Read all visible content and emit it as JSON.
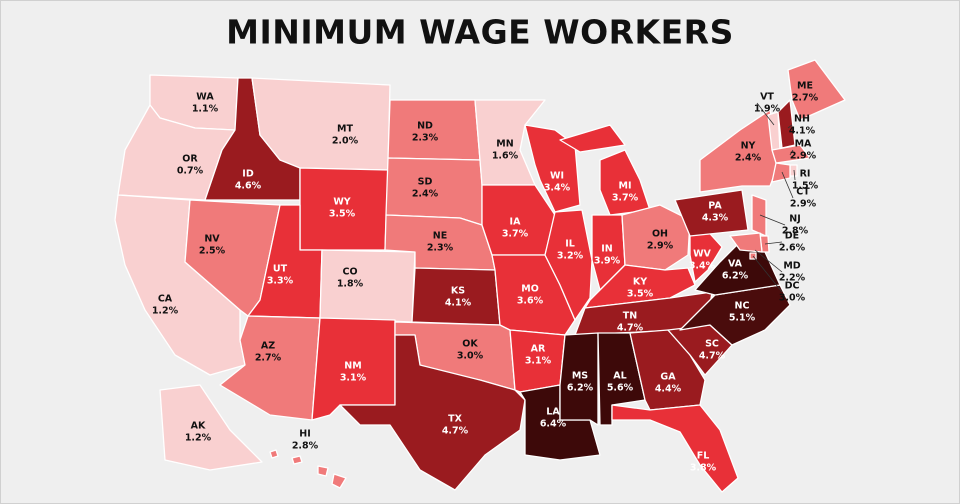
{
  "chart_data": {
    "type": "choropleth",
    "title": "MINIMUM WAGE WORKERS",
    "categories": [
      "WA",
      "OR",
      "CA",
      "NV",
      "ID",
      "MT",
      "WY",
      "UT",
      "CO",
      "AZ",
      "NM",
      "ND",
      "SD",
      "NE",
      "KS",
      "OK",
      "TX",
      "MN",
      "IA",
      "MO",
      "AR",
      "LA",
      "WI",
      "IL",
      "MI",
      "IN",
      "OH",
      "KY",
      "TN",
      "MS",
      "AL",
      "GA",
      "FL",
      "SC",
      "NC",
      "VA",
      "WV",
      "PA",
      "NY",
      "NJ",
      "VT",
      "NH",
      "ME",
      "MA",
      "RI",
      "CT",
      "DE",
      "MD",
      "DC",
      "AK",
      "HI"
    ],
    "values": [
      1.1,
      0.7,
      1.2,
      2.5,
      4.6,
      2.0,
      3.5,
      3.3,
      1.8,
      2.7,
      3.1,
      2.3,
      2.4,
      2.3,
      4.1,
      3.0,
      4.7,
      1.6,
      3.7,
      3.6,
      3.1,
      6.4,
      3.4,
      3.2,
      3.7,
      3.9,
      2.9,
      3.5,
      4.7,
      6.2,
      5.6,
      4.4,
      3.8,
      4.7,
      5.1,
      6.2,
      3.4,
      4.3,
      2.4,
      2.8,
      1.9,
      4.1,
      2.7,
      2.9,
      1.5,
      2.9,
      2.6,
      2.2,
      3.0,
      1.2,
      2.8
    ],
    "value_labels": [
      "1.1%",
      "0.7%",
      "1.2%",
      "2.5%",
      "4.6%",
      "2.0%",
      "3.5%",
      "3.3%",
      "1.8%",
      "2.7%",
      "3.1%",
      "2.3%",
      "2.4%",
      "2.3%",
      "4.1%",
      "3.0%",
      "4.7%",
      "1.6%",
      "3.7%",
      "3.6%",
      "3.1%",
      "6.4%",
      "3.4%",
      "3.2%",
      "3.7%",
      "3.9%",
      "2.9%",
      "3.5%",
      "4.7%",
      "6.2%",
      "5.6%",
      "4.4%",
      "3.8%",
      "4.7%",
      "5.1%",
      "6.2%",
      "3.4%",
      "4.3%",
      "2.4%",
      "2.8%",
      "1.9%",
      "4.1%",
      "2.7%",
      "2.9%",
      "1.5%",
      "2.9%",
      "2.6%",
      "2.2%",
      "3.0%",
      "1.2%",
      "2.8%"
    ],
    "colors": [
      "#f9d0d0",
      "#f9d0d0",
      "#f9d0d0",
      "#f07a7a",
      "#9a1b1f",
      "#f9d0d0",
      "#e83038",
      "#e83038",
      "#f9d0d0",
      "#f07a7a",
      "#e83038",
      "#f07a7a",
      "#f07a7a",
      "#f07a7a",
      "#9a1b1f",
      "#f07a7a",
      "#9a1b1f",
      "#f9d0d0",
      "#e83038",
      "#e83038",
      "#e83038",
      "#3d0909",
      "#e83038",
      "#e83038",
      "#e83038",
      "#e83038",
      "#f07a7a",
      "#e83038",
      "#9a1b1f",
      "#3d0909",
      "#3d0909",
      "#9a1b1f",
      "#e83038",
      "#9a1b1f",
      "#4a0c0c",
      "#3d0909",
      "#e83038",
      "#9a1b1f",
      "#f07a7a",
      "#f07a7a",
      "#f9d0d0",
      "#9a1b1f",
      "#f07a7a",
      "#f07a7a",
      "#f9d0d0",
      "#f07a7a",
      "#f07a7a",
      "#f07a7a",
      "#f07a7a",
      "#f9d0d0",
      "#f07a7a"
    ]
  }
}
